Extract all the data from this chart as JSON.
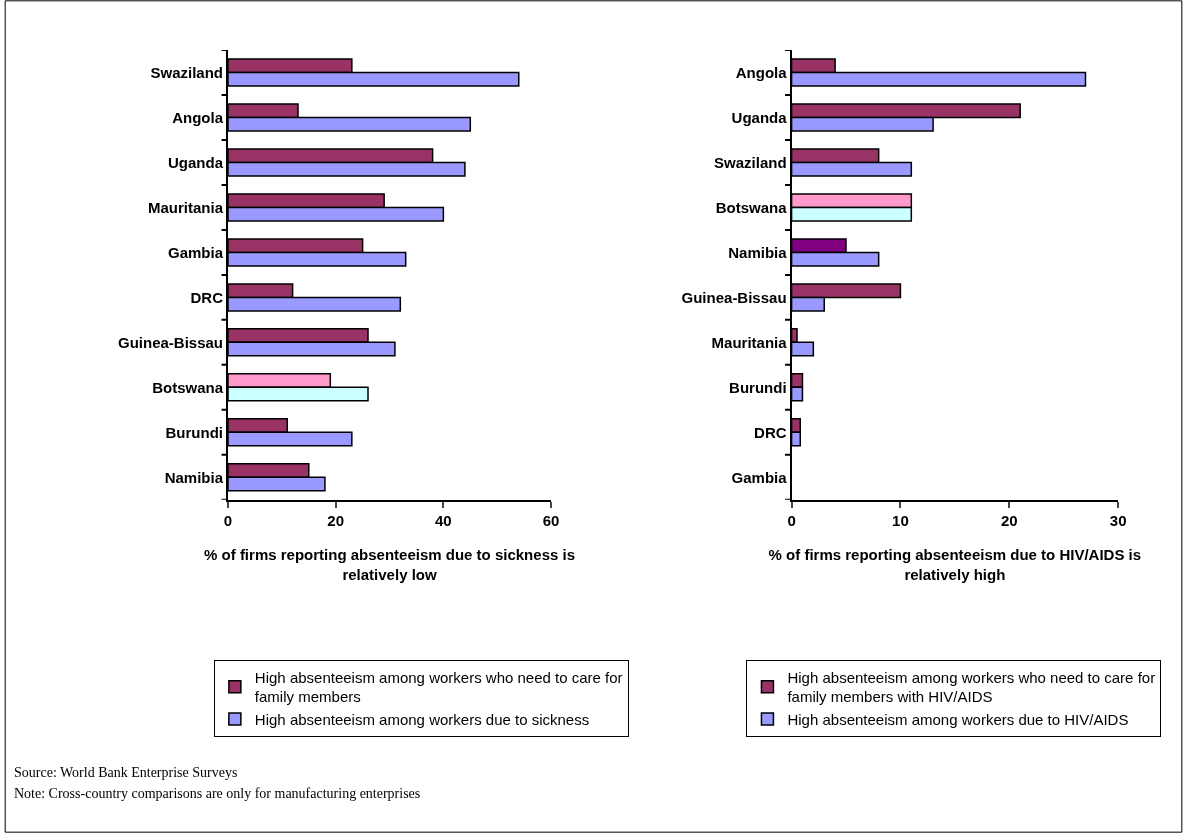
{
  "chart_data": [
    {
      "type": "bar",
      "orientation": "horizontal",
      "xlabel": "% of firms reporting absenteeism due to sickness is relatively low",
      "categories": [
        "Swaziland",
        "Angola",
        "Uganda",
        "Mauritania",
        "Gambia",
        "DRC",
        "Guinea-Bissau",
        "Botswana",
        "Burundi",
        "Namibia"
      ],
      "xlim": [
        0,
        60
      ],
      "xticks": [
        0,
        20,
        40,
        60
      ],
      "grid": false,
      "legend": "bottom",
      "series": [
        {
          "name": "High absenteeism among workers who need to care for family members",
          "colors": [
            "#993366",
            "#993366",
            "#993366",
            "#993366",
            "#993366",
            "#993366",
            "#993366",
            "#ff99cc",
            "#993366",
            "#993366"
          ],
          "values": [
            23,
            13,
            38,
            29,
            25,
            12,
            26,
            19,
            11,
            15
          ]
        },
        {
          "name": "High absenteeism among workers due to sickness",
          "colors": [
            "#9999ff",
            "#9999ff",
            "#9999ff",
            "#9999ff",
            "#9999ff",
            "#9999ff",
            "#9999ff",
            "#ccffff",
            "#9999ff",
            "#9999ff"
          ],
          "values": [
            54,
            45,
            44,
            40,
            33,
            32,
            31,
            26,
            23,
            18
          ]
        }
      ],
      "annotations": [
        "Source: World Bank Enterprise Surveys",
        "Note: Cross-country comparisons are only for manufacturing enterprises"
      ]
    },
    {
      "type": "bar",
      "orientation": "horizontal",
      "xlabel": "% of firms reporting absenteeism due to HIV/AIDS is relatively high",
      "categories": [
        "Angola",
        "Uganda",
        "Swaziland",
        "Botswana",
        "Namibia",
        "Guinea-Bissau",
        "Mauritania",
        "Burundi",
        "DRC",
        "Gambia"
      ],
      "xlim": [
        0,
        30
      ],
      "xticks": [
        0,
        10,
        20,
        30
      ],
      "grid": false,
      "legend": "bottom",
      "series": [
        {
          "name": "High absenteeism among workers who need to care for family members with HIV/AIDS",
          "colors": [
            "#993366",
            "#993366",
            "#993366",
            "#ff99cc",
            "#800080",
            "#993366",
            "#993366",
            "#993366",
            "#993366",
            "#993366"
          ],
          "values": [
            4,
            21,
            8,
            11,
            5,
            10,
            0.5,
            1,
            0.8,
            0
          ]
        },
        {
          "name": "High absenteeism among workers due to HIV/AIDS",
          "colors": [
            "#9999ff",
            "#9999ff",
            "#9999ff",
            "#ccffff",
            "#9999ff",
            "#9999ff",
            "#9999ff",
            "#9999ff",
            "#9999ff",
            "#9999ff"
          ],
          "values": [
            27,
            13,
            11,
            11,
            8,
            3,
            2,
            1,
            0.8,
            0
          ]
        }
      ]
    }
  ]
}
